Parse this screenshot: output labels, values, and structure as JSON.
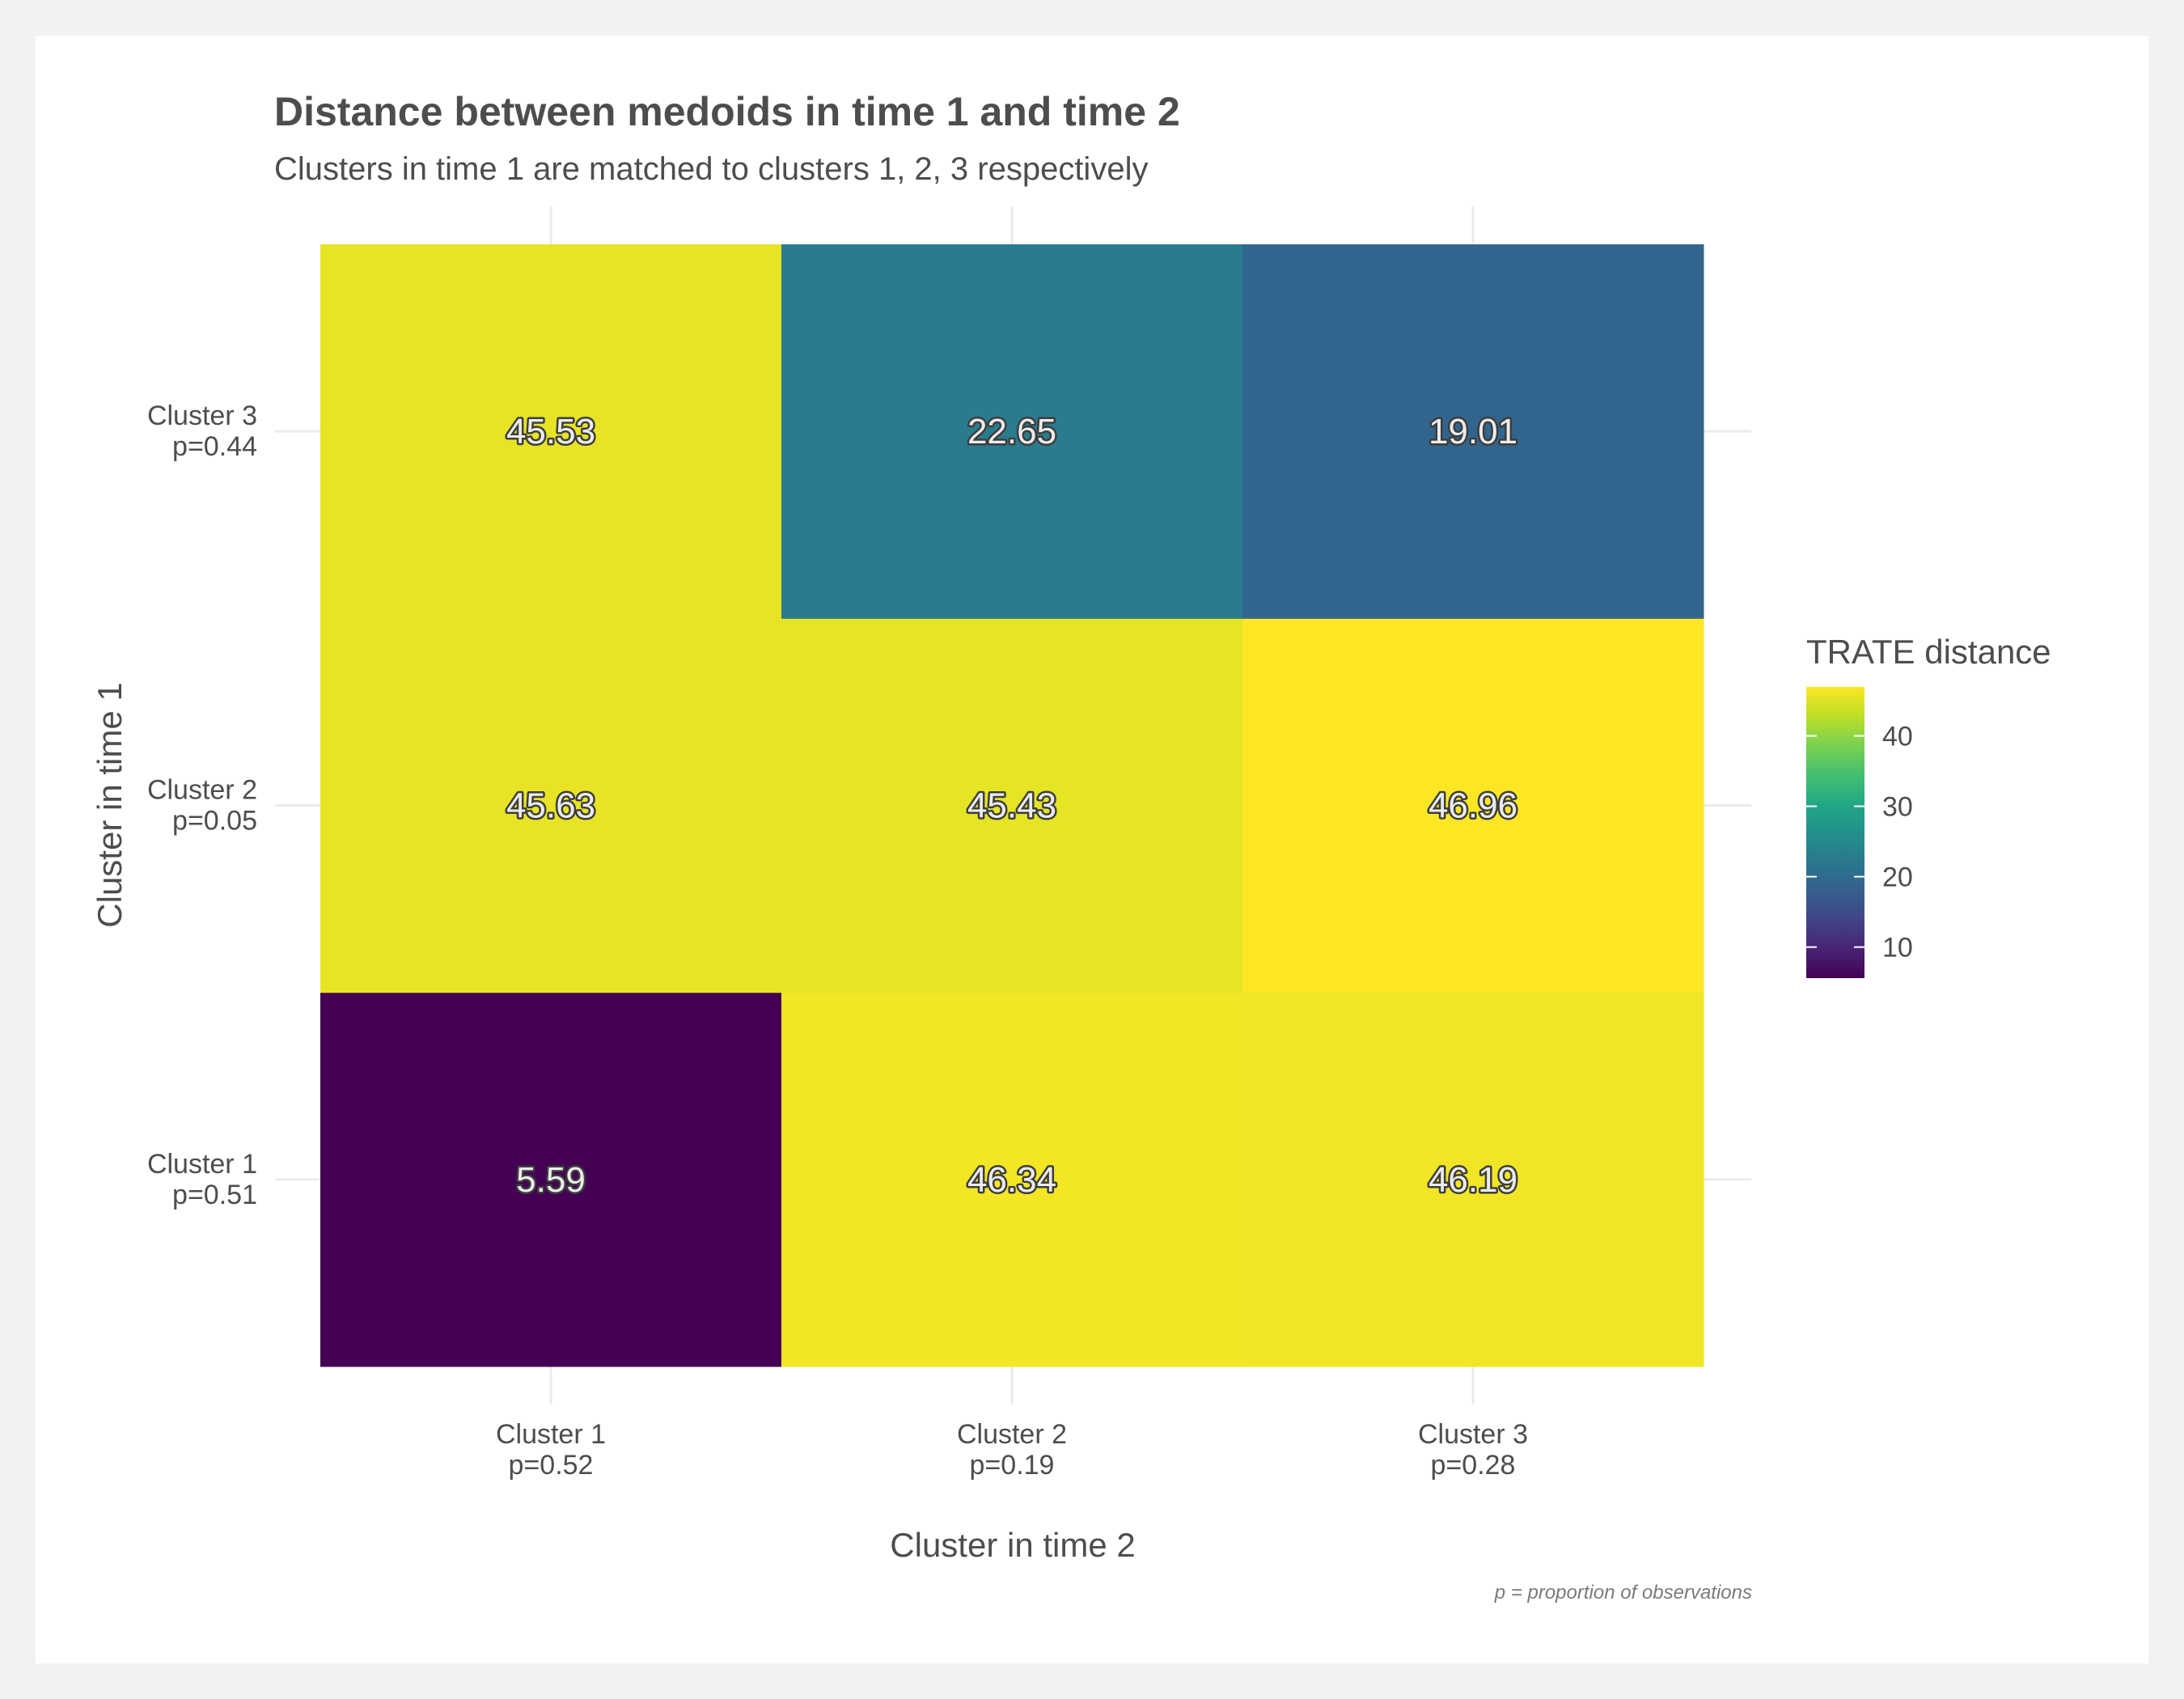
{
  "chart_data": {
    "type": "heatmap",
    "title": "Distance between medoids in time 1 and time 2",
    "subtitle": "Clusters in time 1 are matched to clusters 1, 2, 3 respectively",
    "xlabel": "Cluster in time 2",
    "ylabel": "Cluster in time 1",
    "caption": "p = proportion of observations",
    "x_categories": [
      {
        "line1": "Cluster 1",
        "line2": "p=0.52"
      },
      {
        "line1": "Cluster 2",
        "line2": "p=0.19"
      },
      {
        "line1": "Cluster 3",
        "line2": "p=0.28"
      }
    ],
    "y_categories": [
      {
        "line1": "Cluster 1",
        "line2": "p=0.51"
      },
      {
        "line1": "Cluster 2",
        "line2": "p=0.05"
      },
      {
        "line1": "Cluster 3",
        "line2": "p=0.44"
      }
    ],
    "values": [
      [
        5.59,
        46.34,
        46.19
      ],
      [
        45.63,
        45.43,
        46.96
      ],
      [
        45.53,
        22.65,
        19.01
      ]
    ],
    "labels": [
      [
        "5.59",
        "46.34",
        "46.19"
      ],
      [
        "45.63",
        "45.43",
        "46.96"
      ],
      [
        "45.53",
        "22.65",
        "19.01"
      ]
    ],
    "legend": {
      "title": "TRATE distance",
      "position": "right",
      "colormap": "viridis",
      "range": [
        5.59,
        46.96
      ],
      "ticks": [
        10,
        20,
        30,
        40
      ],
      "tick_labels": [
        "10",
        "20",
        "30",
        "40"
      ]
    },
    "grid": true
  }
}
